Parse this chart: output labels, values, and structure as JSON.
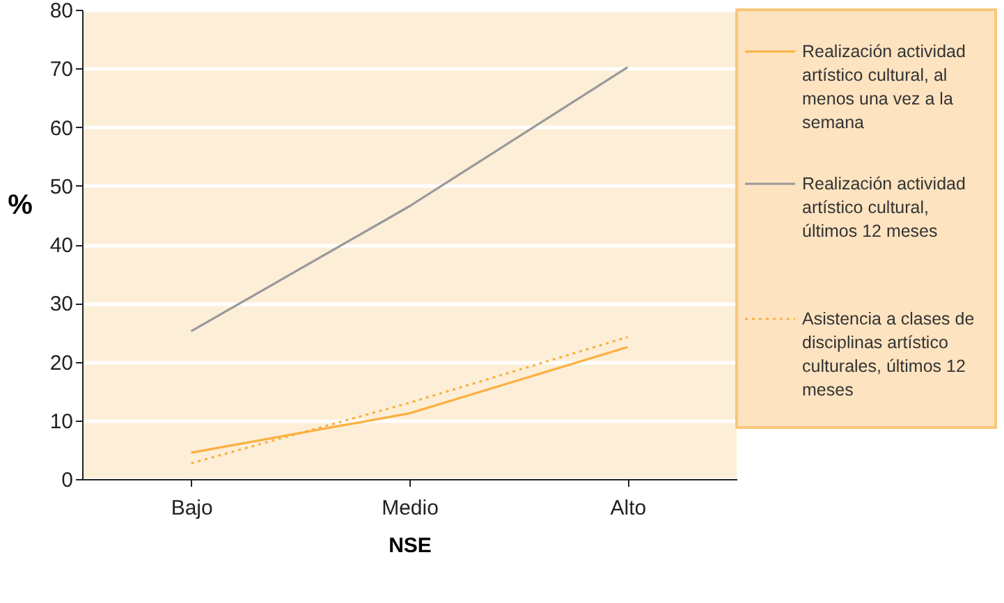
{
  "chart_data": {
    "type": "line",
    "xlabel": "NSE",
    "ylabel": "%",
    "categories": [
      "Bajo",
      "Medio",
      "Alto"
    ],
    "series": [
      {
        "name": "Realización actividad artístico cultural, al menos una vez a la semana",
        "color": "#fbb040",
        "line_style": "solid",
        "values": [
          4.5,
          11.2,
          22.5
        ]
      },
      {
        "name": "Realización actividad artístico cultural, últimos 12 meses",
        "color": "#999999",
        "line_style": "solid",
        "values": [
          25.2,
          46.5,
          70.2
        ]
      },
      {
        "name": "Asistencia a clases de disciplinas artístico culturales, últimos 12 meses",
        "color": "#fbb040",
        "line_style": "dotted",
        "values": [
          2.7,
          13,
          24.2
        ]
      }
    ],
    "ylim": [
      0,
      80
    ],
    "yticks": [
      0,
      10,
      20,
      30,
      40,
      50,
      60,
      70,
      80
    ],
    "grid": "y",
    "legend": "right",
    "marker": "none"
  }
}
